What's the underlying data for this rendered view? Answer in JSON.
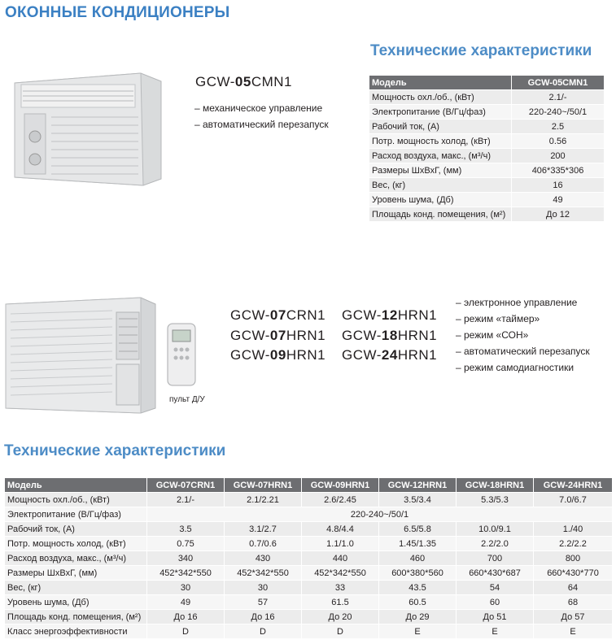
{
  "header": {
    "title": "ОКОННЫЕ КОНДИЦИОНЕРЫ"
  },
  "product1": {
    "model": {
      "prefix": "GCW-",
      "num": "05",
      "suffix": "CMN1"
    },
    "features": [
      "– механическое управление",
      "– автоматический перезапуск"
    ],
    "spec_title": "Технические характеристики",
    "table": {
      "header": [
        "Модель",
        "GCW-05CMN1"
      ],
      "rows": [
        [
          "Мощность охл./об., (кВт)",
          "2.1/-"
        ],
        [
          "Электропитание (В/Гц/фаз)",
          "220-240~/50/1"
        ],
        [
          "Рабочий ток, (А)",
          "2.5"
        ],
        [
          "Потр. мощность холод, (кВт)",
          "0.56"
        ],
        [
          "Расход воздуха, макс., (м³/ч)",
          "200"
        ],
        [
          "Размеры ШхВхГ, (мм)",
          "406*335*306"
        ],
        [
          "Вес, (кг)",
          "16"
        ],
        [
          "Уровень шума, (Дб)",
          "49"
        ],
        [
          "Площадь конд. помещения, (м²)",
          "До 12"
        ]
      ]
    }
  },
  "product2": {
    "models": [
      {
        "prefix": "GCW-",
        "num": "07",
        "suffix": "CRN1"
      },
      {
        "prefix": "GCW-",
        "num": "12",
        "suffix": "HRN1"
      },
      {
        "prefix": "GCW-",
        "num": "07",
        "suffix": "HRN1"
      },
      {
        "prefix": "GCW-",
        "num": "18",
        "suffix": "HRN1"
      },
      {
        "prefix": "GCW-",
        "num": "09",
        "suffix": "HRN1"
      },
      {
        "prefix": "GCW-",
        "num": "24",
        "suffix": "HRN1"
      }
    ],
    "remote_label": "пульт Д/У",
    "features": [
      "– электронное управление",
      "– режим «таймер»",
      "– режим «СОН»",
      "– автоматический перезапуск",
      "– режим самодиагностики"
    ],
    "spec_title": "Технические характеристики",
    "table": {
      "header": [
        "Модель",
        "GCW-07CRN1",
        "GCW-07HRN1",
        "GCW-09HRN1",
        "GCW-12HRN1",
        "GCW-18HRN1",
        "GCW-24HRN1"
      ],
      "rows": [
        [
          "Мощность охл./об., (кВт)",
          "2.1/-",
          "2.1/2.21",
          "2.6/2.45",
          "3.5/3.4",
          "5.3/5.3",
          "7.0/6.7"
        ],
        [
          "Электропитание (В/Гц/фаз)",
          "220-240~/50/1"
        ],
        [
          "Рабочий ток, (А)",
          "3.5",
          "3.1/2.7",
          "4.8/4.4",
          "6.5/5.8",
          "10.0/9.1",
          "1./40"
        ],
        [
          "Потр. мощность холод, (кВт)",
          "0.75",
          "0.7/0.6",
          "1.1/1.0",
          "1.45/1.35",
          "2.2/2.0",
          "2.2/2.2"
        ],
        [
          "Расход воздуха, макс., (м³/ч)",
          "340",
          "430",
          "440",
          "460",
          "700",
          "800"
        ],
        [
          "Размеры ШхВхГ, (мм)",
          "452*342*550",
          "452*342*550",
          "452*342*550",
          "600*380*560",
          "660*430*687",
          "660*430*770"
        ],
        [
          "Вес, (кг)",
          "30",
          "30",
          "33",
          "43.5",
          "54",
          "64"
        ],
        [
          "Уровень шума, (Дб)",
          "49",
          "57",
          "61.5",
          "60.5",
          "60",
          "68"
        ],
        [
          "Площадь конд. помещения, (м²)",
          "До 16",
          "До 16",
          "До 20",
          "До 29",
          "До 51",
          "До 57"
        ],
        [
          "Класс энергоэффективности",
          "D",
          "D",
          "D",
          "E",
          "E",
          "E"
        ]
      ]
    }
  }
}
